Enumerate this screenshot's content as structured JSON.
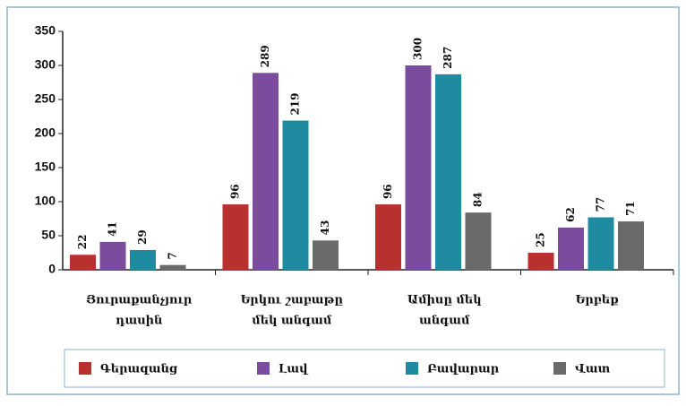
{
  "chart_data": {
    "type": "bar",
    "categories": [
      [
        "Յուրաքանչյուր",
        "դասին"
      ],
      [
        "Երկու շաբաթը",
        "մեկ անգամ"
      ],
      [
        "Ամիսը մեկ",
        "անգամ"
      ],
      [
        "Երբեք"
      ]
    ],
    "series": [
      {
        "name": "Գերազանց",
        "color": "#b8312f",
        "values": [
          22,
          96,
          96,
          25
        ]
      },
      {
        "name": "Լավ",
        "color": "#7b4c9e",
        "values": [
          41,
          289,
          300,
          62
        ]
      },
      {
        "name": "Բավարար",
        "color": "#1e8ba1",
        "values": [
          29,
          219,
          287,
          77
        ]
      },
      {
        "name": "Վատ",
        "color": "#6a6a6a",
        "values": [
          7,
          43,
          84,
          71
        ]
      }
    ],
    "ylim": [
      0,
      350
    ],
    "yticks": [
      0,
      50,
      100,
      150,
      200,
      250,
      300,
      350
    ],
    "grid": false,
    "legend": "bottom"
  }
}
